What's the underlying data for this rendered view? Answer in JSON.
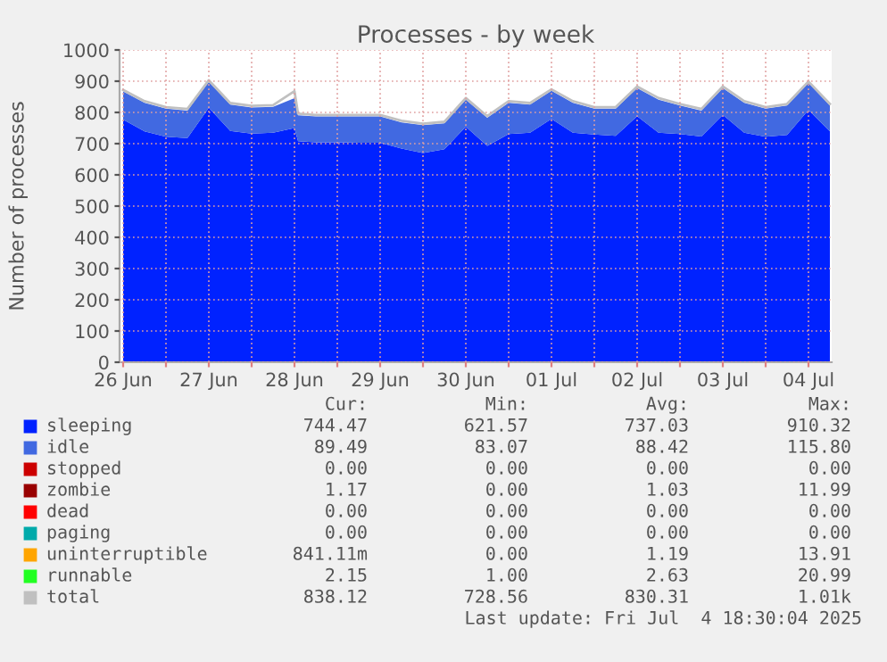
{
  "chart_data": {
    "type": "area",
    "title": "Processes - by week",
    "ylabel": "Number of processes",
    "stacked": true,
    "legend": "bottom",
    "grid": true,
    "x": [
      "2025-06-26T12:00",
      "2025-06-26T18:00",
      "2025-06-27T00:00",
      "2025-06-27T06:00",
      "2025-06-27T12:00",
      "2025-06-27T18:00",
      "2025-06-28T00:00",
      "2025-06-28T06:00",
      "2025-06-28T12:00",
      "2025-06-28T13:00",
      "2025-06-28T18:00",
      "2025-06-29T00:00",
      "2025-06-29T06:00",
      "2025-06-29T12:00",
      "2025-06-29T18:00",
      "2025-06-30T00:00",
      "2025-06-30T06:00",
      "2025-06-30T12:00",
      "2025-06-30T18:00",
      "2025-07-01T00:00",
      "2025-07-01T06:00",
      "2025-07-01T12:00",
      "2025-07-01T18:00",
      "2025-07-02T00:00",
      "2025-07-02T06:00",
      "2025-07-02T12:00",
      "2025-07-02T18:00",
      "2025-07-03T00:00",
      "2025-07-03T06:00",
      "2025-07-03T12:00",
      "2025-07-03T18:00",
      "2025-07-04T00:00",
      "2025-07-04T06:00",
      "2025-07-04T12:00",
      "2025-07-04T18:00"
    ],
    "series": [
      {
        "name": "sleeping",
        "color": "#0022ff",
        "values": [
          777,
          739,
          722,
          718,
          815,
          741,
          732,
          735,
          750,
          708,
          704,
          704,
          703,
          703,
          684,
          670,
          682,
          754,
          693,
          731,
          735,
          779,
          735,
          729,
          725,
          788,
          735,
          731,
          723,
          792,
          735,
          722,
          728,
          808,
          739
        ]
      },
      {
        "name": "idle",
        "color": "#4169e1",
        "values": [
          90,
          92,
          90,
          88,
          83,
          84,
          84,
          83,
          96,
          83,
          83,
          83,
          84,
          84,
          84,
          89,
          83,
          87,
          90,
          100,
          90,
          90,
          96,
          83,
          87,
          90,
          106,
          91,
          83,
          86,
          96,
          90,
          94,
          86,
          83
        ]
      },
      {
        "name": "stopped",
        "color": "#cc0000",
        "values": [
          null,
          null,
          null,
          null,
          null,
          null,
          null,
          null,
          null,
          null,
          null,
          null,
          null,
          null,
          null,
          null,
          null,
          null,
          null,
          null,
          null,
          null,
          null,
          null,
          null,
          null,
          null,
          null,
          null,
          null,
          null,
          null,
          null,
          null,
          null
        ]
      },
      {
        "name": "zombie",
        "color": "#990000",
        "values": [
          null,
          null,
          null,
          null,
          null,
          null,
          null,
          null,
          null,
          null,
          null,
          null,
          null,
          null,
          null,
          null,
          null,
          null,
          null,
          null,
          null,
          null,
          null,
          null,
          null,
          null,
          null,
          null,
          null,
          null,
          null,
          null,
          null,
          null,
          null
        ]
      },
      {
        "name": "dead",
        "color": "#ff0000",
        "values": [
          null,
          null,
          null,
          null,
          null,
          null,
          null,
          null,
          null,
          null,
          null,
          null,
          null,
          null,
          null,
          null,
          null,
          null,
          null,
          null,
          null,
          null,
          null,
          null,
          null,
          null,
          null,
          null,
          null,
          null,
          null,
          null,
          null,
          null,
          null
        ]
      },
      {
        "name": "paging",
        "color": "#00aaaa",
        "values": [
          null,
          null,
          null,
          null,
          null,
          null,
          null,
          null,
          null,
          null,
          null,
          null,
          null,
          null,
          null,
          null,
          null,
          null,
          null,
          null,
          null,
          null,
          null,
          null,
          null,
          null,
          null,
          null,
          null,
          null,
          null,
          null,
          null,
          null,
          null
        ]
      },
      {
        "name": "uninterruptible",
        "color": "#ffa500",
        "values": [
          null,
          null,
          null,
          null,
          null,
          null,
          null,
          null,
          null,
          null,
          null,
          null,
          null,
          null,
          null,
          null,
          null,
          null,
          null,
          null,
          null,
          null,
          null,
          null,
          null,
          null,
          null,
          null,
          null,
          null,
          null,
          null,
          null,
          null,
          null
        ]
      },
      {
        "name": "runnable",
        "color": "#22ff22",
        "values": [
          null,
          null,
          null,
          null,
          null,
          null,
          null,
          null,
          null,
          null,
          null,
          null,
          null,
          null,
          null,
          null,
          null,
          null,
          null,
          null,
          null,
          null,
          null,
          null,
          null,
          null,
          null,
          null,
          null,
          null,
          null,
          null,
          null,
          null,
          null
        ]
      },
      {
        "name": "total",
        "color": "#c0c0c0",
        "type": "line",
        "values": [
          872,
          836,
          817,
          811,
          903,
          830,
          821,
          823,
          868,
          796,
          792,
          792,
          792,
          792,
          773,
          764,
          770,
          846,
          788,
          836,
          830,
          874,
          836,
          817,
          817,
          883,
          846,
          827,
          811,
          883,
          836,
          817,
          827,
          899,
          827
        ]
      }
    ],
    "xlim": [
      "2025-06-26T11:00",
      "2025-07-04T18:30"
    ],
    "xticks": [
      {
        "value": "2025-06-26T12:00",
        "label": "26 Jun"
      },
      {
        "value": "2025-06-27T00:00",
        "label": null
      },
      {
        "value": "2025-06-27T12:00",
        "label": "27 Jun"
      },
      {
        "value": "2025-06-28T00:00",
        "label": null
      },
      {
        "value": "2025-06-28T12:00",
        "label": "28 Jun"
      },
      {
        "value": "2025-06-29T00:00",
        "label": null
      },
      {
        "value": "2025-06-29T12:00",
        "label": "29 Jun"
      },
      {
        "value": "2025-06-30T00:00",
        "label": null
      },
      {
        "value": "2025-06-30T12:00",
        "label": "30 Jun"
      },
      {
        "value": "2025-07-01T00:00",
        "label": null
      },
      {
        "value": "2025-07-01T12:00",
        "label": "01 Jul"
      },
      {
        "value": "2025-07-02T00:00",
        "label": null
      },
      {
        "value": "2025-07-02T12:00",
        "label": "02 Jul"
      },
      {
        "value": "2025-07-03T00:00",
        "label": null
      },
      {
        "value": "2025-07-03T12:00",
        "label": "03 Jul"
      },
      {
        "value": "2025-07-04T00:00",
        "label": null
      },
      {
        "value": "2025-07-04T12:00",
        "label": "04 Jul"
      }
    ],
    "ylim": [
      0,
      1000
    ],
    "yticks": [
      0,
      100,
      200,
      300,
      400,
      500,
      600,
      700,
      800,
      900,
      1000
    ],
    "annotations": [
      "Cur:",
      "Min:",
      "Avg:",
      "Max:",
      "744.47",
      "621.57",
      "737.03",
      "910.32",
      "89.49",
      "83.07",
      "88.42",
      "115.80",
      "0.00",
      "0.00",
      "0.00",
      "0.00",
      "1.17",
      "0.00",
      "1.03",
      "11.99",
      "0.00",
      "0.00",
      "0.00",
      "0.00",
      "0.00",
      "0.00",
      "0.00",
      "0.00",
      "841.11m",
      "0.00",
      "1.19",
      "13.91",
      "2.15",
      "1.00",
      "2.63",
      "20.99",
      "838.12",
      "728.56",
      "830.31",
      "1.01k",
      "Last update: Fri Jul  4 18:30:04 2025"
    ]
  }
}
